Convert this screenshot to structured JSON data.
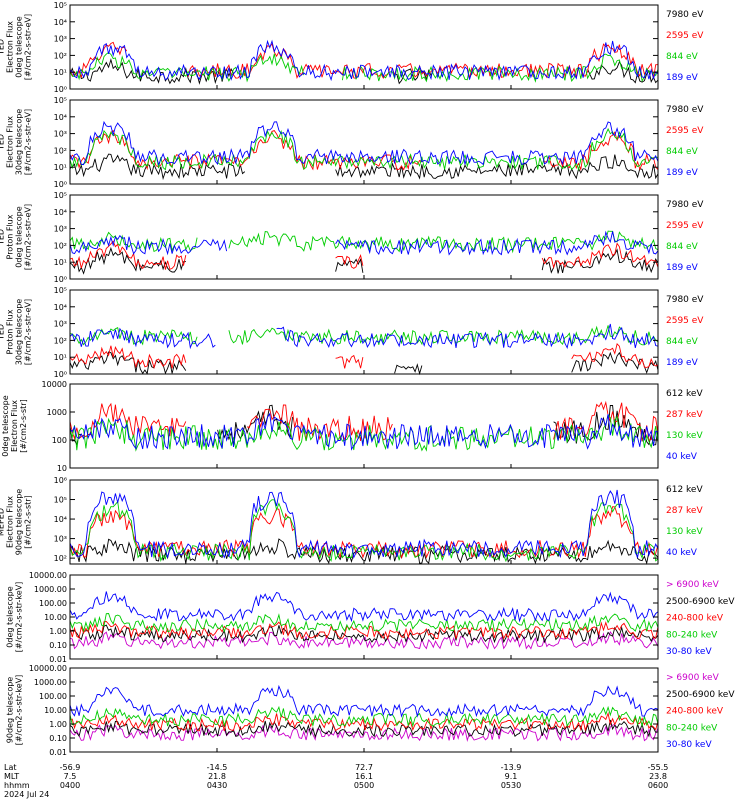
{
  "chart_data": {
    "type": "line",
    "title": "",
    "panels": [
      {
        "ylabel": [
          "TED",
          "Electron Flux",
          "0deg telescope",
          "[#/cm2-s-str-eV]"
        ],
        "scale": "log",
        "ylim": [
          1,
          100000
        ],
        "yticks": [
          {
            "value": 1,
            "label": "10⁰"
          },
          {
            "value": 10,
            "label": "10¹"
          },
          {
            "value": 100,
            "label": "10²"
          },
          {
            "value": 1000,
            "label": "10³"
          },
          {
            "value": 10000,
            "label": "10⁴"
          },
          {
            "value": 100000,
            "label": "10⁵"
          }
        ],
        "series": [
          {
            "name": "7980 eV",
            "color": "#000000",
            "base": 6,
            "amp": 2.5,
            "gaps": [
              [
                0.28,
                0.55
              ],
              [
                0.62,
                0.88
              ]
            ],
            "x": [],
            "values": []
          },
          {
            "name": "2595 eV",
            "color": "#ff0000",
            "base": 12,
            "amp": 20,
            "gaps": [
              [
                0.1,
                0.2
              ]
            ],
            "x": [],
            "values": []
          },
          {
            "name": "844 eV",
            "color": "#00cc00",
            "base": 8,
            "amp": 8,
            "gaps": [
              [
                0.4,
                0.46
              ]
            ],
            "x": [],
            "values": []
          },
          {
            "name": "189 eV",
            "color": "#0000ff",
            "base": 10,
            "amp": 30,
            "gaps": [],
            "x": [],
            "values": []
          }
        ]
      },
      {
        "ylabel": [
          "TED",
          "Electron Flux",
          "30deg telescope",
          "[#/cm2-s-str-eV]"
        ],
        "scale": "log",
        "ylim": [
          1,
          100000
        ],
        "yticks": [
          {
            "value": 1,
            "label": "10⁰"
          },
          {
            "value": 10,
            "label": "10¹"
          },
          {
            "value": 100,
            "label": "10²"
          },
          {
            "value": 1000,
            "label": "10³"
          },
          {
            "value": 10000,
            "label": "10⁴"
          },
          {
            "value": 100000,
            "label": "10⁵"
          }
        ],
        "series": [
          {
            "name": "7980 eV",
            "color": "#000000",
            "base": 6,
            "amp": 3,
            "gaps": [
              [
                0.3,
                0.45
              ]
            ],
            "x": [],
            "values": []
          },
          {
            "name": "2595 eV",
            "color": "#ff0000",
            "base": 20,
            "amp": 30,
            "gaps": [
              [
                0.6,
                0.8
              ]
            ],
            "x": [],
            "values": []
          },
          {
            "name": "844 eV",
            "color": "#00cc00",
            "base": 20,
            "amp": 40,
            "gaps": [],
            "x": [],
            "values": []
          },
          {
            "name": "189 eV",
            "color": "#0000ff",
            "base": 40,
            "amp": 60,
            "gaps": [],
            "x": [],
            "values": []
          }
        ]
      },
      {
        "ylabel": [
          "TED",
          "Proton Flux",
          "0deg telescope",
          "[#/cm2-s-str-eV]"
        ],
        "scale": "log",
        "ylim": [
          1,
          100000
        ],
        "yticks": [
          {
            "value": 1,
            "label": "10⁰"
          },
          {
            "value": 10,
            "label": "10¹"
          },
          {
            "value": 100,
            "label": "10²"
          },
          {
            "value": 1000,
            "label": "10³"
          },
          {
            "value": 10000,
            "label": "10⁴"
          },
          {
            "value": 100000,
            "label": "10⁵"
          }
        ],
        "series": [
          {
            "name": "7980 eV",
            "color": "#000000",
            "base": 6,
            "amp": 4,
            "gaps": [
              [
                0.2,
                0.45
              ],
              [
                0.5,
                0.8
              ]
            ],
            "x": [],
            "values": []
          },
          {
            "name": "2595 eV",
            "color": "#ff0000",
            "base": 10,
            "amp": 6,
            "gaps": [
              [
                0.2,
                0.45
              ],
              [
                0.5,
                0.8
              ]
            ],
            "x": [],
            "values": []
          },
          {
            "name": "844 eV",
            "color": "#00cc00",
            "base": 120,
            "amp": 1.5,
            "gaps": [
              [
                0.22,
                0.27
              ]
            ],
            "x": [],
            "values": []
          },
          {
            "name": "189 eV",
            "color": "#0000ff",
            "base": 80,
            "amp": 2.5,
            "gaps": [
              [
                0.27,
                0.45
              ]
            ],
            "x": [],
            "values": []
          }
        ]
      },
      {
        "ylabel": [
          "TED",
          "Proton Flux",
          "30deg telescope",
          "[#/cm2-s-str-eV]"
        ],
        "scale": "log",
        "ylim": [
          1,
          100000
        ],
        "yticks": [
          {
            "value": 1,
            "label": "10⁰"
          },
          {
            "value": 10,
            "label": "10¹"
          },
          {
            "value": 100,
            "label": "10²"
          },
          {
            "value": 1000,
            "label": "10³"
          },
          {
            "value": 10000,
            "label": "10⁴"
          },
          {
            "value": 100000,
            "label": "10⁵"
          }
        ],
        "series": [
          {
            "name": "7980 eV",
            "color": "#000000",
            "base": 3,
            "amp": 2,
            "gaps": [
              [
                0.2,
                0.55
              ],
              [
                0.6,
                0.85
              ]
            ],
            "x": [],
            "values": []
          },
          {
            "name": "2595 eV",
            "color": "#ff0000",
            "base": 6,
            "amp": 4,
            "gaps": [
              [
                0.2,
                0.45
              ],
              [
                0.5,
                0.85
              ]
            ],
            "x": [],
            "values": []
          },
          {
            "name": "844 eV",
            "color": "#00cc00",
            "base": 150,
            "amp": 1.5,
            "gaps": [
              [
                0.22,
                0.27
              ]
            ],
            "x": [],
            "values": []
          },
          {
            "name": "189 eV",
            "color": "#0000ff",
            "base": 100,
            "amp": 2.5,
            "gaps": [
              [
                0.25,
                0.35
              ]
            ],
            "x": [],
            "values": []
          }
        ]
      },
      {
        "ylabel": [
          "0deg telescope",
          "Electron Flux",
          "[#/cm2-s-str]"
        ],
        "scale": "log",
        "ylim": [
          10,
          10000
        ],
        "yticks": [
          {
            "value": 10,
            "label": "10"
          },
          {
            "value": 100,
            "label": "100"
          },
          {
            "value": 1000,
            "label": "1000"
          },
          {
            "value": 10000,
            "label": "10000"
          }
        ],
        "series": [
          {
            "name": "612 keV",
            "color": "#000000",
            "base": 180,
            "amp": 3,
            "gaps": [
              [
                0.02,
                0.25
              ],
              [
                0.38,
                0.82
              ]
            ],
            "x": [],
            "values": []
          },
          {
            "name": "287 keV",
            "color": "#ff0000",
            "base": 260,
            "amp": 4,
            "gaps": [
              [
                0.2,
                0.3
              ],
              [
                0.55,
                0.82
              ]
            ],
            "x": [],
            "values": []
          },
          {
            "name": "130 keV",
            "color": "#00cc00",
            "base": 120,
            "amp": 1.6,
            "gaps": [],
            "x": [],
            "values": []
          },
          {
            "name": "40 keV",
            "color": "#0000ff",
            "base": 130,
            "amp": 2,
            "gaps": [],
            "x": [],
            "values": []
          }
        ]
      },
      {
        "ylabel": [
          "MEPED",
          "Electron Flux",
          "90deg telescope",
          "[#/cm2-s-str]"
        ],
        "scale": "log",
        "ylim": [
          50,
          1000000
        ],
        "yticks": [
          {
            "value": 100,
            "label": "10²"
          },
          {
            "value": 1000,
            "label": "10³"
          },
          {
            "value": 10000,
            "label": "10⁴"
          },
          {
            "value": 100000,
            "label": "10⁵"
          },
          {
            "value": 1000000,
            "label": "10⁶"
          }
        ],
        "series": [
          {
            "name": "612 keV",
            "color": "#000000",
            "base": 150,
            "amp": 2,
            "gaps": [],
            "x": [],
            "values": []
          },
          {
            "name": "287 keV",
            "color": "#ff0000",
            "base": 300,
            "amp": 60,
            "gaps": [],
            "x": [],
            "values": []
          },
          {
            "name": "130 keV",
            "color": "#00cc00",
            "base": 200,
            "amp": 200,
            "gaps": [],
            "x": [],
            "values": []
          },
          {
            "name": "40 keV",
            "color": "#0000ff",
            "base": 300,
            "amp": 500,
            "gaps": [],
            "x": [],
            "values": []
          }
        ]
      },
      {
        "ylabel": [
          "0deg telescope",
          "[#/cm2-s-str-keV]"
        ],
        "scale": "log",
        "ylim": [
          0.01,
          10000
        ],
        "yticks": [
          {
            "value": 0.01,
            "label": "0.01"
          },
          {
            "value": 0.1,
            "label": "0.10"
          },
          {
            "value": 1,
            "label": "1.00"
          },
          {
            "value": 10,
            "label": "10.00"
          },
          {
            "value": 100,
            "label": "100.00"
          },
          {
            "value": 1000,
            "label": "1000.00"
          },
          {
            "value": 10000,
            "label": "10000.00"
          }
        ],
        "series": [
          {
            "name": "> 6900 keV",
            "color": "#cc00cc",
            "base": 0.15,
            "amp": 1.2,
            "gaps": [],
            "x": [],
            "values": []
          },
          {
            "name": "2500-6900 keV",
            "color": "#000000",
            "base": 0.45,
            "amp": 1.4,
            "gaps": [],
            "x": [],
            "values": []
          },
          {
            "name": "240-800 keV",
            "color": "#ff0000",
            "base": 0.8,
            "amp": 1.5,
            "gaps": [],
            "x": [],
            "values": []
          },
          {
            "name": "80-240 keV",
            "color": "#00cc00",
            "base": 2.5,
            "amp": 2,
            "gaps": [],
            "x": [],
            "values": []
          },
          {
            "name": "30-80 keV",
            "color": "#0000ff",
            "base": 15,
            "amp": 20,
            "gaps": [],
            "x": [],
            "values": []
          }
        ]
      },
      {
        "ylabel": [
          "90deg telescope",
          "[#/cm2-s-str-keV]"
        ],
        "scale": "log",
        "ylim": [
          0.01,
          10000
        ],
        "yticks": [
          {
            "value": 0.01,
            "label": "0.01"
          },
          {
            "value": 0.1,
            "label": "0.10"
          },
          {
            "value": 1,
            "label": "1.00"
          },
          {
            "value": 10,
            "label": "10.00"
          },
          {
            "value": 100,
            "label": "100.00"
          },
          {
            "value": 1000,
            "label": "1000.00"
          },
          {
            "value": 10000,
            "label": "10000.00"
          }
        ],
        "series": [
          {
            "name": "> 6900 keV",
            "color": "#cc00cc",
            "base": 0.18,
            "amp": 1.2,
            "gaps": [],
            "x": [],
            "values": []
          },
          {
            "name": "2500-6900 keV",
            "color": "#000000",
            "base": 0.35,
            "amp": 1.4,
            "gaps": [],
            "x": [],
            "values": []
          },
          {
            "name": "240-800 keV",
            "color": "#ff0000",
            "base": 0.9,
            "amp": 1.5,
            "gaps": [],
            "x": [],
            "values": []
          },
          {
            "name": "80-240 keV",
            "color": "#00cc00",
            "base": 2,
            "amp": 2.5,
            "gaps": [],
            "x": [],
            "values": []
          },
          {
            "name": "30-80 keV",
            "color": "#0000ff",
            "base": 10,
            "amp": 25,
            "gaps": [],
            "x": [],
            "values": []
          }
        ]
      }
    ],
    "x_axis": {
      "row_labels": [
        "Lat",
        "MLT",
        "hhmm",
        "2024 Jul 24"
      ],
      "ticks": [
        {
          "frac": 0,
          "lat": "-56.9",
          "mlt": "7.5",
          "hhmm": "0400"
        },
        {
          "frac": 0.25,
          "lat": "-14.5",
          "mlt": "21.8",
          "hhmm": "0430"
        },
        {
          "frac": 0.5,
          "lat": "72.7",
          "mlt": "16.1",
          "hhmm": "0500"
        },
        {
          "frac": 0.75,
          "lat": "-13.9",
          "mlt": "9.1",
          "hhmm": "0530"
        },
        {
          "frac": 1,
          "lat": "-55.5",
          "mlt": "23.8",
          "hhmm": "0600"
        }
      ]
    }
  }
}
